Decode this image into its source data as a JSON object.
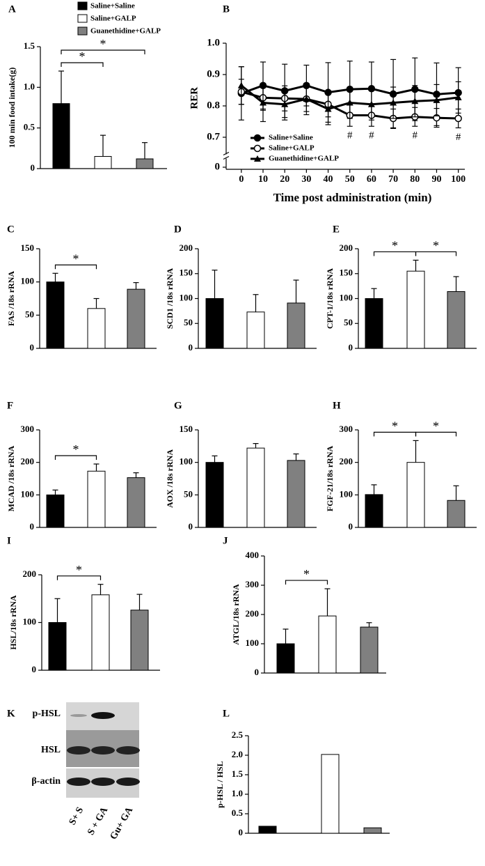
{
  "chart_data": [
    {
      "type": "bar",
      "panel": "A",
      "ylabel": "100 min food intake(g)",
      "categories": [
        null,
        null,
        null
      ],
      "legend": [
        "Saline+Saline",
        "Saline+GALP",
        "Guanethidine+GALP"
      ],
      "values": [
        0.8,
        0.15,
        0.12
      ],
      "errors": [
        0.4,
        0.26,
        0.2
      ],
      "colors": [
        "#000000",
        "#ffffff",
        "#808080"
      ],
      "ylim": [
        0,
        1.5
      ],
      "yticks": [
        0,
        0.5,
        {
          "value": 1,
          "label": "1.0"
        },
        {
          "value": 1.5,
          "label": "1.5"
        }
      ],
      "annotations": [
        {
          "text": "*",
          "between": [
            0,
            1
          ]
        },
        {
          "text": "*",
          "between": [
            0,
            2
          ]
        }
      ]
    },
    {
      "type": "line",
      "panel": "B",
      "ylabel": "RER",
      "xlabel": "Time post administration (min)",
      "x": [
        0,
        10,
        20,
        30,
        40,
        50,
        60,
        70,
        80,
        90,
        100
      ],
      "series": [
        {
          "name": "Saline+Saline",
          "color": "#000000",
          "marker": "filled-circle",
          "values": [
            0.84,
            0.865,
            0.848,
            0.865,
            0.843,
            0.853,
            0.855,
            0.838,
            0.853,
            0.837,
            0.842
          ],
          "errors": [
            0.085,
            0.075,
            0.085,
            0.065,
            0.095,
            0.09,
            0.085,
            0.11,
            0.1,
            0.1,
            0.08
          ]
        },
        {
          "name": "Saline+GALP",
          "color": "#000000",
          "marker": "open-circle",
          "values": [
            0.845,
            0.826,
            0.824,
            0.822,
            0.805,
            0.77,
            0.77,
            0.76,
            0.765,
            0.762,
            0.76
          ],
          "errors": [
            0.04,
            0.04,
            0.04,
            0.04,
            0.04,
            0.035,
            0.035,
            0.03,
            0.03,
            0.03,
            0.03
          ]
        },
        {
          "name": "Guanethidine+GALP",
          "color": "#000000",
          "marker": "triangle",
          "values": [
            0.865,
            0.81,
            0.805,
            0.822,
            0.79,
            0.81,
            0.805,
            0.81,
            0.815,
            0.818,
            0.827
          ],
          "errors": [
            0.06,
            0.06,
            0.05,
            0.05,
            0.05,
            0.05,
            0.05,
            0.05,
            0.05,
            0.05,
            0.05
          ]
        }
      ],
      "xlim": [
        -7,
        103
      ],
      "xticks": [
        0,
        10,
        20,
        30,
        40,
        50,
        60,
        70,
        80,
        90,
        100
      ],
      "ylim": [
        0.65,
        1.0
      ],
      "yticks": [
        0,
        0.7,
        0.8,
        0.9,
        {
          "value": 1,
          "label": "1.0"
        }
      ],
      "axis_break": true,
      "legend_position": "lower left",
      "annotations": [
        {
          "text": "#",
          "x": 50
        },
        {
          "text": "#",
          "x": 60
        },
        {
          "text": "#",
          "x": 80
        },
        {
          "text": "#",
          "x": 100
        }
      ]
    },
    {
      "type": "bar",
      "panel": "C",
      "ylabel": "FAS /18s rRNA",
      "categories": [
        null,
        null,
        null
      ],
      "values": [
        100,
        60,
        89
      ],
      "errors": [
        13,
        15,
        10
      ],
      "colors": [
        "#000000",
        "#ffffff",
        "#808080"
      ],
      "ylim": [
        0,
        150
      ],
      "yticks": [
        0,
        50,
        100,
        150
      ],
      "annotations": [
        {
          "text": "*",
          "between": [
            0,
            1
          ]
        }
      ]
    },
    {
      "type": "bar",
      "panel": "D",
      "ylabel": "SCD1 /18s rRNA",
      "categories": [
        null,
        null,
        null
      ],
      "values": [
        100,
        73,
        91
      ],
      "errors": [
        57,
        35,
        46
      ],
      "colors": [
        "#000000",
        "#ffffff",
        "#808080"
      ],
      "ylim": [
        0,
        200
      ],
      "yticks": [
        0,
        50,
        100,
        150,
        200
      ],
      "annotations": []
    },
    {
      "type": "bar",
      "panel": "E",
      "ylabel": "CPT-1/18s rRNA",
      "categories": [
        null,
        null,
        null
      ],
      "values": [
        100,
        155,
        114
      ],
      "errors": [
        20,
        22,
        30
      ],
      "colors": [
        "#000000",
        "#ffffff",
        "#808080"
      ],
      "ylim": [
        0,
        200
      ],
      "yticks": [
        0,
        50,
        100,
        150,
        200
      ],
      "annotations": [
        {
          "text": "*",
          "between": [
            0,
            1
          ]
        },
        {
          "text": "*",
          "between": [
            1,
            2
          ]
        }
      ]
    },
    {
      "type": "bar",
      "panel": "F",
      "ylabel": "MCAD /18s rRNA",
      "categories": [
        null,
        null,
        null
      ],
      "values": [
        100,
        173,
        153
      ],
      "errors": [
        15,
        22,
        15
      ],
      "colors": [
        "#000000",
        "#ffffff",
        "#808080"
      ],
      "ylim": [
        0,
        300
      ],
      "yticks": [
        0,
        100,
        200,
        300
      ],
      "annotations": [
        {
          "text": "*",
          "between": [
            0,
            1
          ]
        }
      ]
    },
    {
      "type": "bar",
      "panel": "G",
      "ylabel": "AOX /18s rRNA",
      "categories": [
        null,
        null,
        null
      ],
      "values": [
        100,
        122,
        103
      ],
      "errors": [
        10,
        7,
        10
      ],
      "colors": [
        "#000000",
        "#ffffff",
        "#808080"
      ],
      "ylim": [
        0,
        150
      ],
      "yticks": [
        0,
        50,
        100,
        150
      ],
      "annotations": []
    },
    {
      "type": "bar",
      "panel": "H",
      "ylabel": "FGF-21/18s rRNA",
      "categories": [
        null,
        null,
        null
      ],
      "values": [
        101,
        200,
        83
      ],
      "errors": [
        30,
        67,
        45
      ],
      "colors": [
        "#000000",
        "#ffffff",
        "#808080"
      ],
      "ylim": [
        0,
        300
      ],
      "yticks": [
        0,
        100,
        200,
        300
      ],
      "annotations": [
        {
          "text": "*",
          "between": [
            0,
            1
          ]
        },
        {
          "text": "*",
          "between": [
            1,
            2
          ]
        }
      ]
    },
    {
      "type": "bar",
      "panel": "I",
      "ylabel": "HSL/18s rRNA",
      "categories": [
        null,
        null,
        null
      ],
      "values": [
        100,
        158,
        126
      ],
      "errors": [
        50,
        22,
        33
      ],
      "colors": [
        "#000000",
        "#ffffff",
        "#808080"
      ],
      "ylim": [
        0,
        200
      ],
      "yticks": [
        0,
        100,
        200
      ],
      "annotations": [
        {
          "text": "*",
          "between": [
            0,
            1
          ]
        }
      ]
    },
    {
      "type": "bar",
      "panel": "J",
      "ylabel": "ATGL/18s rRNA",
      "categories": [
        null,
        null,
        null
      ],
      "values": [
        100,
        195,
        157
      ],
      "errors": [
        50,
        93,
        15
      ],
      "colors": [
        "#000000",
        "#ffffff",
        "#808080"
      ],
      "ylim": [
        0,
        400
      ],
      "yticks": [
        0,
        100,
        200,
        300,
        400
      ],
      "annotations": [
        {
          "text": "*",
          "between": [
            0,
            1
          ]
        }
      ]
    },
    {
      "type": "blot",
      "panel": "K",
      "rows": [
        "p-HSL",
        "HSL",
        "β-actin"
      ],
      "lanes": [
        "S+ S",
        "S + GA",
        "Gu+ GA"
      ]
    },
    {
      "type": "bar",
      "panel": "L",
      "ylabel": "p-HSL / HSL",
      "categories": [
        null,
        null,
        null
      ],
      "values": [
        0.18,
        2.02,
        0.14
      ],
      "colors": [
        "#000000",
        "#ffffff",
        "#808080"
      ],
      "ylim": [
        0,
        2.5
      ],
      "yticks": [
        0,
        0.5,
        {
          "value": 1,
          "label": "1.0"
        },
        1.5,
        {
          "value": 2,
          "label": "2.0"
        },
        2.5
      ],
      "annotations": []
    }
  ]
}
